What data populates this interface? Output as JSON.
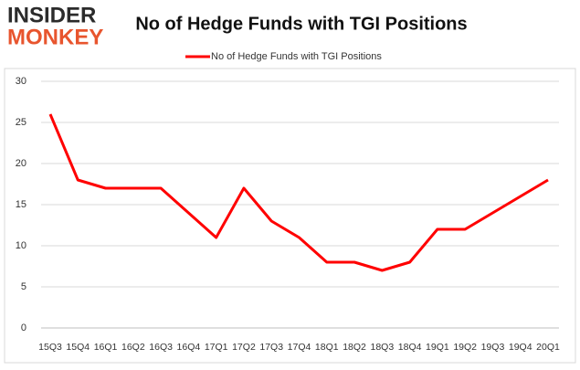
{
  "logo": {
    "line1": "INSIDER",
    "line2": "MONKEY"
  },
  "chart_data": {
    "type": "line",
    "title": "No of Hedge Funds with TGI Positions",
    "categories": [
      "15Q3",
      "15Q4",
      "16Q1",
      "16Q2",
      "16Q3",
      "16Q4",
      "17Q1",
      "17Q2",
      "17Q3",
      "17Q4",
      "18Q1",
      "18Q2",
      "18Q3",
      "18Q4",
      "19Q1",
      "19Q2",
      "19Q3",
      "19Q4",
      "20Q1"
    ],
    "series": [
      {
        "name": "No of Hedge Funds with TGI Positions",
        "color": "#ff0000",
        "values": [
          26,
          18,
          17,
          17,
          17,
          14,
          11,
          17,
          13,
          11,
          8,
          8,
          7,
          8,
          12,
          12,
          14,
          16,
          18
        ]
      }
    ],
    "ylim": [
      0,
      30
    ],
    "yticks": [
      0,
      5,
      10,
      15,
      20,
      25,
      30
    ],
    "grid": true,
    "legend": "top"
  }
}
